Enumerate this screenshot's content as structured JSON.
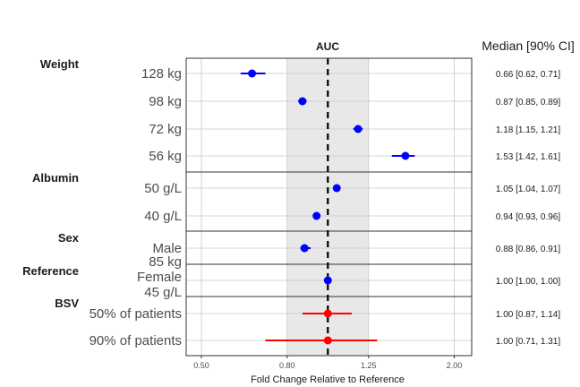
{
  "chart_data": {
    "type": "forest",
    "title": "AUC",
    "right_title": "Median [90% CI]",
    "xlabel": "Fold Change Relative to Reference",
    "x_scale": "log",
    "xlim": [
      0.46,
      2.2
    ],
    "x_ticks": [
      0.5,
      0.8,
      1.25,
      2.0
    ],
    "x_tick_labels": [
      "0.50",
      "0.80",
      "1.25",
      "2.00"
    ],
    "reference_band": [
      0.8,
      1.25
    ],
    "reference_line": 1.0,
    "grid": true,
    "colors": {
      "covariate": "#0000ff",
      "bsv": "#ff0000",
      "band": "#e8e8e8"
    },
    "groups": [
      {
        "name": "Weight",
        "rows": [
          {
            "label": "128 kg",
            "median": 0.66,
            "lower": 0.62,
            "upper": 0.71,
            "ci_text": "0.66 [0.62, 0.71]",
            "color": "#0000ff"
          },
          {
            "label": "98 kg",
            "median": 0.87,
            "lower": 0.85,
            "upper": 0.89,
            "ci_text": "0.87 [0.85, 0.89]",
            "color": "#0000ff"
          },
          {
            "label": "72 kg",
            "median": 1.18,
            "lower": 1.15,
            "upper": 1.21,
            "ci_text": "1.18 [1.15, 1.21]",
            "color": "#0000ff"
          },
          {
            "label": "56 kg",
            "median": 1.53,
            "lower": 1.42,
            "upper": 1.61,
            "ci_text": "1.53 [1.42, 1.61]",
            "color": "#0000ff"
          }
        ]
      },
      {
        "name": "Albumin",
        "rows": [
          {
            "label": "50 g/L",
            "median": 1.05,
            "lower": 1.04,
            "upper": 1.07,
            "ci_text": "1.05 [1.04, 1.07]",
            "color": "#0000ff"
          },
          {
            "label": "40 g/L",
            "median": 0.94,
            "lower": 0.93,
            "upper": 0.96,
            "ci_text": "0.94 [0.93, 0.96]",
            "color": "#0000ff"
          }
        ]
      },
      {
        "name": "Sex",
        "rows": [
          {
            "label": "Male",
            "median": 0.88,
            "lower": 0.86,
            "upper": 0.91,
            "ci_text": "0.88 [0.86, 0.91]",
            "color": "#0000ff"
          }
        ]
      },
      {
        "name": "Reference",
        "rows": [
          {
            "label": "85 kg\nFemale\n45 g/L",
            "median": 1.0,
            "lower": 1.0,
            "upper": 1.0,
            "ci_text": "1.00 [1.00, 1.00]",
            "color": "#0000ff"
          }
        ]
      },
      {
        "name": "BSV",
        "rows": [
          {
            "label": "50% of patients",
            "median": 1.0,
            "lower": 0.87,
            "upper": 1.14,
            "ci_text": "1.00 [0.87, 1.14]",
            "color": "#ff0000"
          },
          {
            "label": "90% of patients",
            "median": 1.0,
            "lower": 0.71,
            "upper": 1.31,
            "ci_text": "1.00 [0.71, 1.31]",
            "color": "#ff0000"
          }
        ]
      }
    ]
  }
}
